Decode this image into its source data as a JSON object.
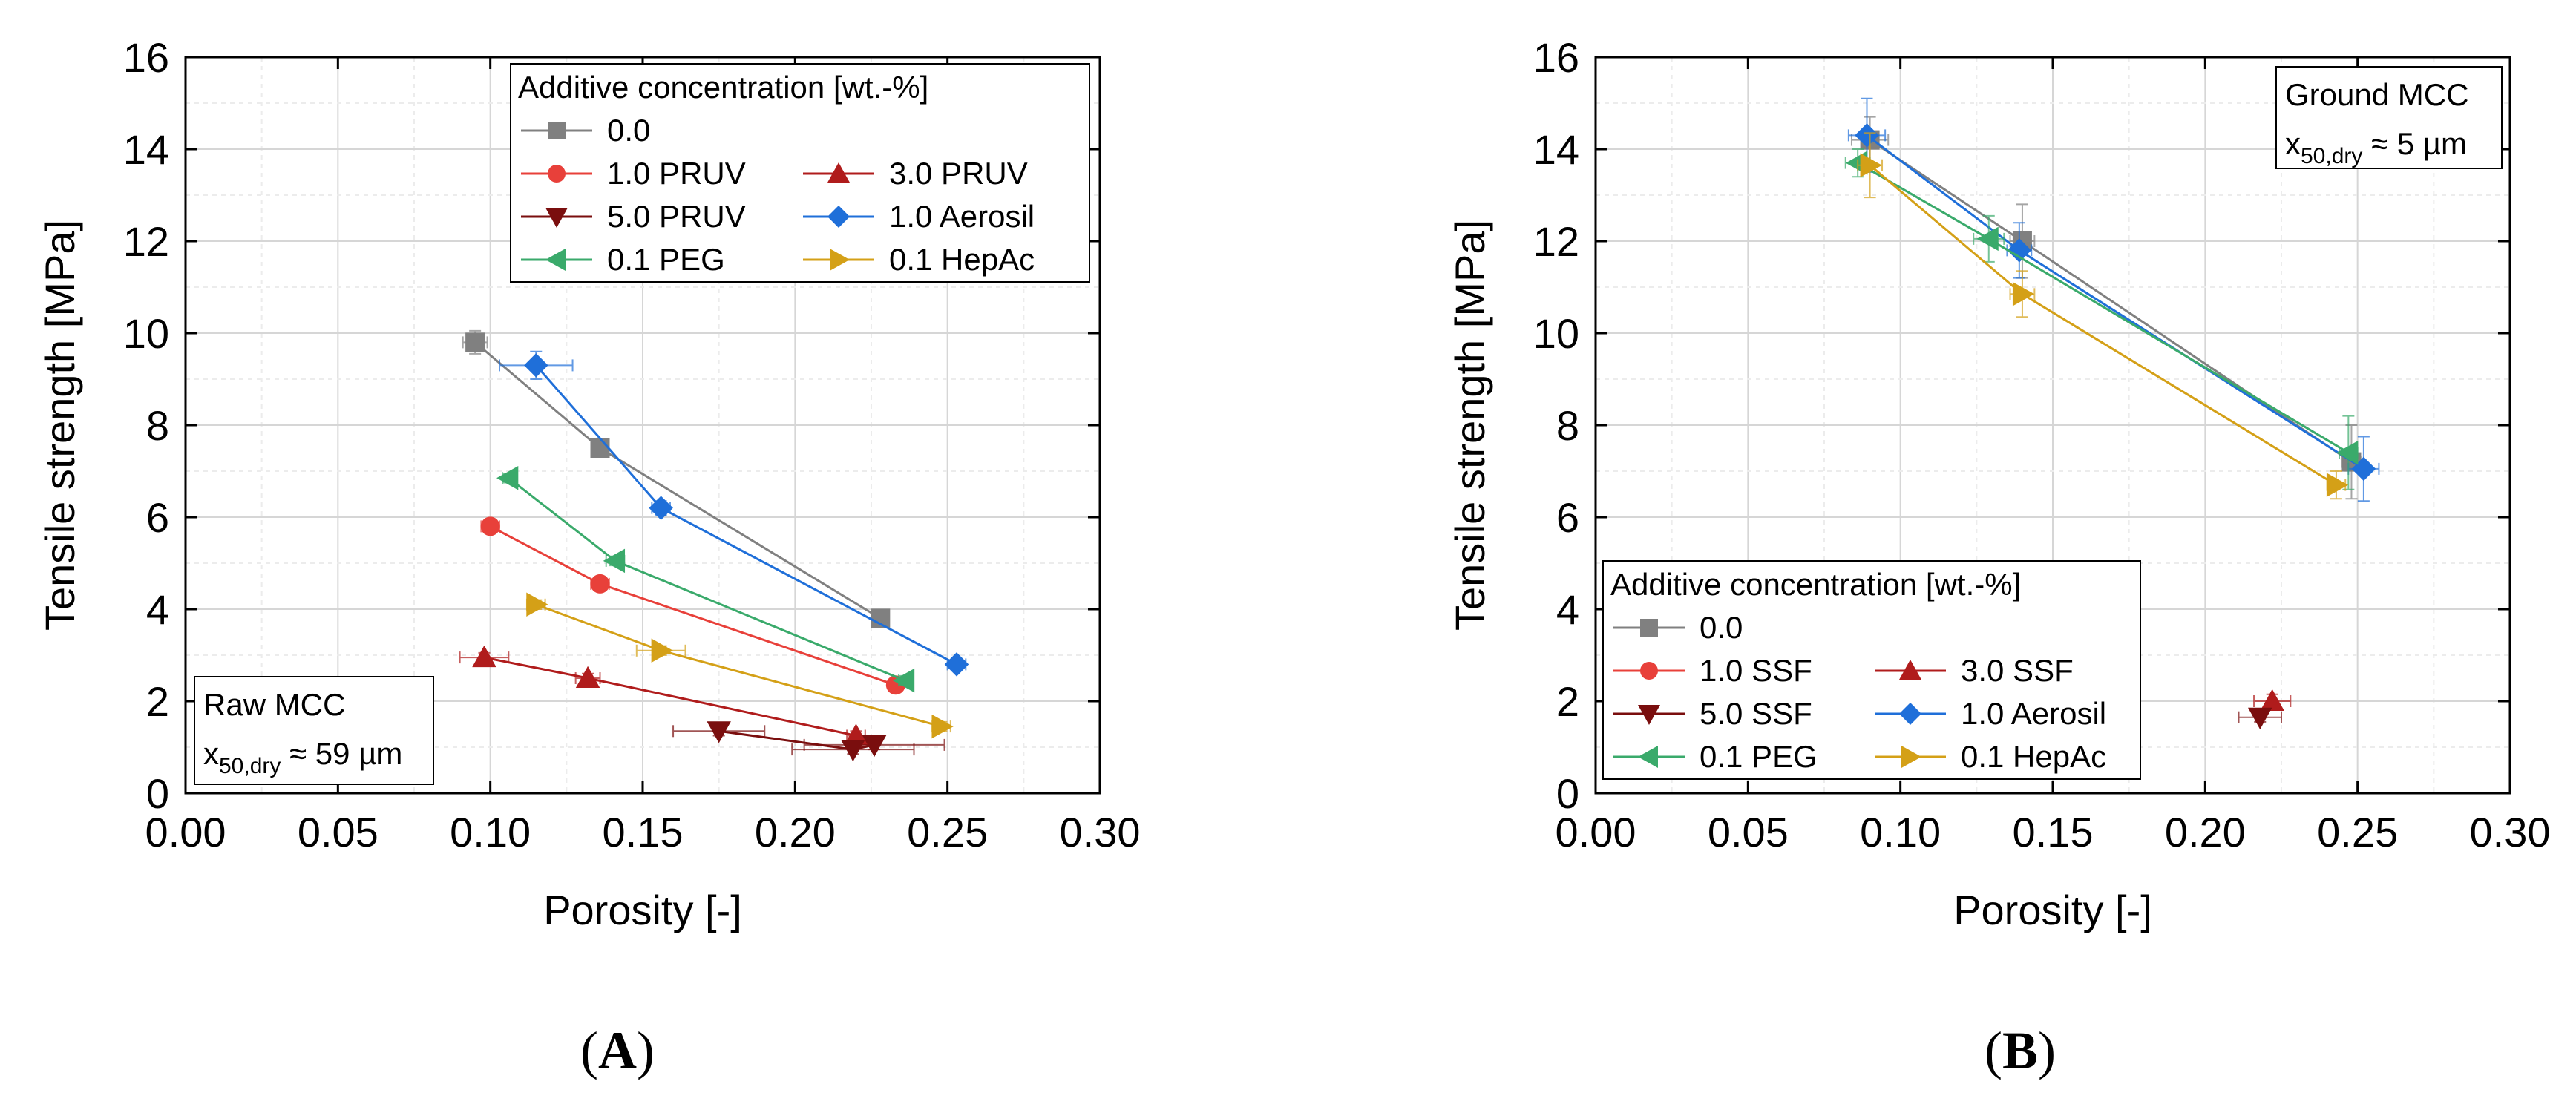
{
  "chart_data": [
    {
      "type": "scatter",
      "panel": "(A)",
      "panel_letter": "A",
      "xlabel": "Porosity [-]",
      "ylabel": "Tensile strength [MPa]",
      "xlim": [
        0.0,
        0.3
      ],
      "ylim": [
        0,
        16
      ],
      "xticks": [
        "0.00",
        "0.05",
        "0.10",
        "0.15",
        "0.20",
        "0.25",
        "0.30"
      ],
      "yticks": [
        "0",
        "2",
        "4",
        "6",
        "8",
        "10",
        "12",
        "14",
        "16"
      ],
      "grid": true,
      "legend_title": "Additive concentration [wt.-%]",
      "legend_position": "top-right",
      "annotation_lines": [
        "Raw MCC",
        "x",
        "50,dry",
        " ≈ 59 µm"
      ],
      "annotation_position": "bottom-left",
      "series": [
        {
          "name": "0.0",
          "color": "#808080",
          "marker": "square",
          "x": [
            0.095,
            0.136,
            0.228
          ],
          "y": [
            9.8,
            7.5,
            3.8
          ],
          "xerr": [
            0.004,
            0.002,
            0.002
          ],
          "yerr": [
            0.25,
            0.15,
            0.1
          ]
        },
        {
          "name": "1.0 PRUV",
          "color": "#e8403a",
          "marker": "circle",
          "x": [
            0.1,
            0.136,
            0.233
          ],
          "y": [
            5.8,
            4.55,
            2.35
          ],
          "xerr": [
            0.003,
            0.003,
            0.002
          ],
          "yerr": [
            0.15,
            0.15,
            0.1
          ]
        },
        {
          "name": "3.0 PRUV",
          "color": "#b01c1c",
          "marker": "triangle-up",
          "x": [
            0.098,
            0.132,
            0.22
          ],
          "y": [
            2.95,
            2.5,
            1.25
          ],
          "xerr": [
            0.008,
            0.004,
            0.003
          ],
          "yerr": [
            0.1,
            0.1,
            0.1
          ]
        },
        {
          "name": "5.0 PRUV",
          "color": "#7a0e0e",
          "marker": "triangle-down",
          "x": [
            0.175,
            0.219,
            0.226
          ],
          "y": [
            1.35,
            0.95,
            1.05
          ],
          "xerr": [
            0.015,
            0.02,
            0.023
          ],
          "yerr": [
            0.1,
            0.1,
            0.1
          ]
        },
        {
          "name": "1.0 Aerosil",
          "color": "#1f6fd9",
          "marker": "diamond",
          "x": [
            0.115,
            0.156,
            0.253
          ],
          "y": [
            9.3,
            6.2,
            2.8
          ],
          "xerr": [
            0.012,
            0.003,
            0.003
          ],
          "yerr": [
            0.3,
            0.15,
            0.1
          ]
        },
        {
          "name": "0.1 PEG",
          "color": "#3aaa6b",
          "marker": "triangle-left",
          "x": [
            0.106,
            0.141,
            0.236
          ],
          "y": [
            6.85,
            5.05,
            2.45
          ],
          "xerr": [
            0.002,
            0.003,
            0.002
          ],
          "yerr": [
            0.1,
            0.1,
            0.1
          ]
        },
        {
          "name": "0.1 HepAc",
          "color": "#d4a017",
          "marker": "triangle-right",
          "x": [
            0.115,
            0.156,
            0.248
          ],
          "y": [
            4.1,
            3.1,
            1.45
          ],
          "xerr": [
            0.003,
            0.008,
            0.003
          ],
          "yerr": [
            0.1,
            0.1,
            0.1
          ]
        }
      ]
    },
    {
      "type": "scatter",
      "panel": "(B)",
      "panel_letter": "B",
      "xlabel": "Porosity [-]",
      "ylabel": "Tensile strength [MPa]",
      "xlim": [
        0.0,
        0.3
      ],
      "ylim": [
        0,
        16
      ],
      "xticks": [
        "0.00",
        "0.05",
        "0.10",
        "0.15",
        "0.20",
        "0.25",
        "0.30"
      ],
      "yticks": [
        "0",
        "2",
        "4",
        "6",
        "8",
        "10",
        "12",
        "14",
        "16"
      ],
      "grid": true,
      "legend_title": "Additive concentration [wt.-%]",
      "legend_position": "bottom-left",
      "annotation_lines": [
        "Ground MCC",
        "x",
        "50,dry",
        " ≈ 5 µm"
      ],
      "annotation_position": "top-right",
      "series": [
        {
          "name": "0.0",
          "color": "#808080",
          "marker": "square",
          "x": [
            0.09,
            0.14,
            0.248
          ],
          "y": [
            14.2,
            12.0,
            7.2
          ],
          "xerr": [
            0.006,
            0.004,
            0.003
          ],
          "yerr": [
            0.5,
            0.8,
            0.8
          ]
        },
        {
          "name": "1.0 SSF",
          "color": "#e8403a",
          "marker": "circle",
          "x": [],
          "y": [],
          "xerr": [],
          "yerr": []
        },
        {
          "name": "3.0 SSF",
          "color": "#b01c1c",
          "marker": "triangle-up",
          "x": [
            0.222
          ],
          "y": [
            2.0
          ],
          "xerr": [
            0.006
          ],
          "yerr": [
            0.15
          ]
        },
        {
          "name": "5.0 SSF",
          "color": "#7a0e0e",
          "marker": "triangle-down",
          "x": [
            0.218
          ],
          "y": [
            1.65
          ],
          "xerr": [
            0.007
          ],
          "yerr": [
            0.1
          ]
        },
        {
          "name": "1.0 Aerosil",
          "color": "#1f6fd9",
          "marker": "diamond",
          "x": [
            0.089,
            0.139,
            0.252
          ],
          "y": [
            14.3,
            11.8,
            7.05
          ],
          "xerr": [
            0.006,
            0.004,
            0.005
          ],
          "yerr": [
            0.8,
            0.6,
            0.7
          ]
        },
        {
          "name": "0.1 PEG",
          "color": "#3aaa6b",
          "marker": "triangle-left",
          "x": [
            0.086,
            0.129,
            0.247
          ],
          "y": [
            13.7,
            12.05,
            7.4
          ],
          "xerr": [
            0.004,
            0.005,
            0.003
          ],
          "yerr": [
            0.3,
            0.5,
            0.8
          ]
        },
        {
          "name": "0.1 HepAc",
          "color": "#d4a017",
          "marker": "triangle-right",
          "x": [
            0.09,
            0.14,
            0.243
          ],
          "y": [
            13.65,
            10.85,
            6.7
          ],
          "xerr": [
            0.004,
            0.004,
            0.003
          ],
          "yerr": [
            0.7,
            0.5,
            0.3
          ]
        }
      ]
    }
  ]
}
